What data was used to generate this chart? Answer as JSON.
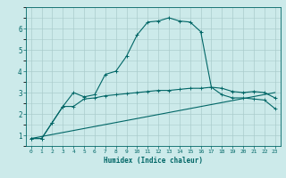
{
  "xlabel": "Humidex (Indice chaleur)",
  "bg_color": "#cceaea",
  "grid_color": "#aacccc",
  "line_color": "#006666",
  "xlim": [
    -0.5,
    23.5
  ],
  "ylim": [
    0.5,
    7.0
  ],
  "xticks": [
    0,
    1,
    2,
    3,
    4,
    5,
    6,
    7,
    8,
    9,
    10,
    11,
    12,
    13,
    14,
    15,
    16,
    17,
    18,
    19,
    20,
    21,
    22,
    23
  ],
  "yticks": [
    1,
    2,
    3,
    4,
    5,
    6
  ],
  "series1_x": [
    0,
    1,
    2,
    3,
    4,
    5,
    6,
    7,
    8,
    9,
    10,
    11,
    12,
    13,
    14,
    15,
    16,
    17,
    18,
    19,
    20,
    21,
    22,
    23
  ],
  "series1_y": [
    0.85,
    0.85,
    1.6,
    2.35,
    3.0,
    2.8,
    2.9,
    3.85,
    4.0,
    4.7,
    5.7,
    6.3,
    6.35,
    6.5,
    6.35,
    6.3,
    5.85,
    3.25,
    3.2,
    3.05,
    3.0,
    3.05,
    3.0,
    2.75
  ],
  "series2_x": [
    0,
    1,
    2,
    3,
    4,
    5,
    6,
    7,
    8,
    9,
    10,
    11,
    12,
    13,
    14,
    15,
    16,
    17,
    18,
    19,
    20,
    21,
    22,
    23
  ],
  "series2_y": [
    0.85,
    0.85,
    1.6,
    2.35,
    2.35,
    2.7,
    2.75,
    2.85,
    2.9,
    2.95,
    3.0,
    3.05,
    3.1,
    3.1,
    3.15,
    3.2,
    3.2,
    3.25,
    2.9,
    2.75,
    2.75,
    2.7,
    2.65,
    2.25
  ],
  "series3_x": [
    0,
    23
  ],
  "series3_y": [
    0.85,
    3.0
  ],
  "font_family": "monospace"
}
